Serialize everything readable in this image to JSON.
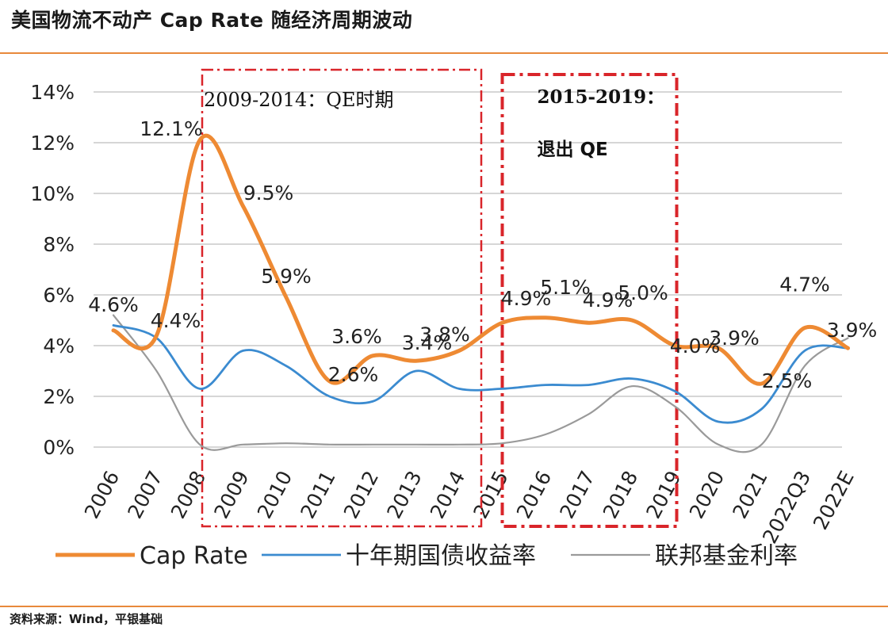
{
  "title": "美国物流不动产 Cap Rate 随经济周期波动",
  "source": "资料来源：Wind，平银基础",
  "chart_data": {
    "type": "line",
    "categories": [
      "2006",
      "2007",
      "2008",
      "2009",
      "2010",
      "2011",
      "2012",
      "2013",
      "2014",
      "2015",
      "2016",
      "2017",
      "2018",
      "2019",
      "2020",
      "2021",
      "2022Q3",
      "2022E"
    ],
    "ylim": [
      0,
      14
    ],
    "yticks": [
      0,
      2,
      4,
      6,
      8,
      10,
      12,
      14
    ],
    "ytick_labels": [
      "0%",
      "2%",
      "4%",
      "6%",
      "8%",
      "10%",
      "12%",
      "14%"
    ],
    "series": [
      {
        "name": "Cap Rate",
        "color": "#ee8a33",
        "values": [
          4.6,
          4.4,
          12.1,
          9.5,
          5.9,
          2.6,
          3.6,
          3.4,
          3.8,
          4.9,
          5.1,
          4.9,
          5.0,
          4.0,
          3.9,
          2.5,
          4.7,
          3.9
        ]
      },
      {
        "name": "十年期国债收益率",
        "color": "#3b8bd0",
        "values": [
          4.8,
          4.3,
          2.3,
          3.8,
          3.2,
          2.0,
          1.8,
          3.0,
          2.3,
          2.3,
          2.45,
          2.45,
          2.7,
          2.2,
          1.0,
          1.5,
          3.8,
          3.9
        ]
      },
      {
        "name": "联邦基金利率",
        "color": "#9a9a9a",
        "values": [
          5.2,
          3.0,
          0.1,
          0.1,
          0.15,
          0.1,
          0.1,
          0.1,
          0.1,
          0.15,
          0.5,
          1.3,
          2.4,
          1.6,
          0.1,
          0.1,
          3.2,
          4.3
        ]
      }
    ],
    "data_labels": [
      {
        "text": "4.6%",
        "value": 4.6,
        "category": "2006"
      },
      {
        "text": "4.4%",
        "value": 4.4,
        "category": "2007"
      },
      {
        "text": "12.1%",
        "value": 12.1,
        "category": "2008"
      },
      {
        "text": "9.5%",
        "value": 9.5,
        "category": "2009"
      },
      {
        "text": "5.9%",
        "value": 5.9,
        "category": "2010"
      },
      {
        "text": "2.6%",
        "value": 2.6,
        "category": "2011"
      },
      {
        "text": "3.6%",
        "value": 3.6,
        "category": "2012"
      },
      {
        "text": "3.4%",
        "value": 3.4,
        "category": "2013"
      },
      {
        "text": "3.8%",
        "value": 3.8,
        "category": "2014"
      },
      {
        "text": "4.9%",
        "value": 4.9,
        "category": "2015"
      },
      {
        "text": "5.1%",
        "value": 5.1,
        "category": "2016"
      },
      {
        "text": "5.0%",
        "value": 5.0,
        "category": "2018"
      },
      {
        "text": "4.9%",
        "value": 4.9,
        "category": "2017"
      },
      {
        "text": "4.0%",
        "value": 4.0,
        "category": "2019"
      },
      {
        "text": "3.9%",
        "value": 3.9,
        "category": "2020"
      },
      {
        "text": "2.5%",
        "value": 2.5,
        "category": "2021"
      },
      {
        "text": "4.7%",
        "value": 4.7,
        "category": "2022Q3"
      },
      {
        "text": "3.9%",
        "value": 3.9,
        "category": "2022E"
      }
    ],
    "annotations": [
      {
        "text": "2009-2014：QE时期",
        "from": "2008",
        "to": "2014"
      },
      {
        "text_line1": "2015-2019：",
        "text_line2": "退出 QE",
        "from": "2015",
        "to": "2019"
      }
    ],
    "legend_position": "bottom",
    "grid": true
  },
  "colors": {
    "accent": "#e8893b",
    "annotation_box": "#d9252a",
    "grid": "#bdbdbd"
  }
}
